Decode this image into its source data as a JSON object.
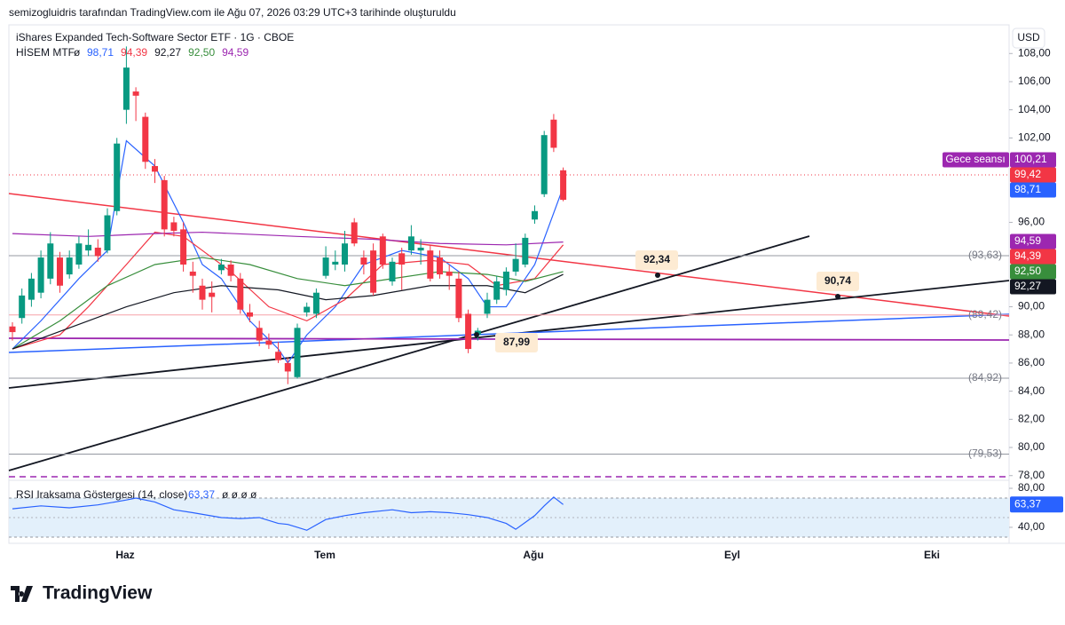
{
  "chart_data": {
    "type": "candlestick",
    "attribution": "semizogluidris tarafından TradingView.com ile Ağu 07, 2026 03:29 UTC+3 tarihinde oluşturuldu",
    "title": "iShares Expanded Tech-Software Sector ETF · 1G · CBOE",
    "currency": "USD",
    "indicator": {
      "name": "HİSEM MTF",
      "symbol": "ø",
      "values": [
        "98,71",
        "94,39",
        "92,27",
        "92,50",
        "94,59"
      ],
      "colors": [
        "#2962ff",
        "#f23645",
        "#131722",
        "#388e3c",
        "#9c27b0"
      ]
    },
    "categories": [
      "Haz",
      "Tem",
      "Ağu",
      "Eyl",
      "Eki"
    ],
    "up_color": "#089981",
    "down_color": "#f23645",
    "candles": {
      "open": [
        88.6,
        89.2,
        90.5,
        91.0,
        92.0,
        93.5,
        92.3,
        93.0,
        94.0,
        94.2,
        94.0,
        96.8,
        104.0,
        105.3,
        103.5,
        100.0,
        99.0,
        96.0,
        95.5,
        92.5,
        91.5,
        91.0,
        92.6,
        93.0,
        92.0,
        89.6,
        88.5,
        87.6,
        86.8,
        86.0,
        85.0,
        89.6,
        89.5,
        92.2,
        93.0,
        93.0,
        96.0,
        93.5,
        94.0,
        95.0,
        91.8,
        93.8,
        94.0,
        94.0,
        94.0,
        93.5,
        92.5,
        92.0,
        89.5,
        88.0,
        89.5,
        90.5,
        91.2,
        92.5,
        93.0,
        96.2,
        98.0,
        103.3,
        99.7
      ],
      "high": [
        88.9,
        91.3,
        92.4,
        94.0,
        95.3,
        93.9,
        94.0,
        95.0,
        95.5,
        94.8,
        97.0,
        102.0,
        108.5,
        105.6,
        103.8,
        100.5,
        99.3,
        96.4,
        96.0,
        93.2,
        92.0,
        91.8,
        93.4,
        93.3,
        92.4,
        90.2,
        89.0,
        88.1,
        87.5,
        86.4,
        88.8,
        90.3,
        91.3,
        94.3,
        94.0,
        95.4,
        96.3,
        94.0,
        94.5,
        95.2,
        93.5,
        94.2,
        95.8,
        94.8,
        94.4,
        94.0,
        93.0,
        92.5,
        89.8,
        88.5,
        91.0,
        92.2,
        92.8,
        94.5,
        95.2,
        97.2,
        102.5,
        103.7,
        99.9
      ],
      "low": [
        87.6,
        88.8,
        90.0,
        90.6,
        91.6,
        91.0,
        92.0,
        92.7,
        93.6,
        93.2,
        93.8,
        96.5,
        103.0,
        103.2,
        99.8,
        98.8,
        95.0,
        95.0,
        92.5,
        91.0,
        89.8,
        89.6,
        92.3,
        91.8,
        89.5,
        88.9,
        87.2,
        87.0,
        86.0,
        84.5,
        84.9,
        89.3,
        89.2,
        92.0,
        92.6,
        92.5,
        94.3,
        92.3,
        90.8,
        92.7,
        91.5,
        91.2,
        93.7,
        93.0,
        91.8,
        92.0,
        91.2,
        88.9,
        86.7,
        87.6,
        89.2,
        90.2,
        90.8,
        92.2,
        92.8,
        95.9,
        97.8,
        101.0,
        97.5
      ],
      "close": [
        88.2,
        90.8,
        92.0,
        93.5,
        94.5,
        91.5,
        93.5,
        94.5,
        94.4,
        93.6,
        96.5,
        101.6,
        107.0,
        105.0,
        100.3,
        99.6,
        95.5,
        95.4,
        93.0,
        92.2,
        90.5,
        90.7,
        93.0,
        92.2,
        89.8,
        89.3,
        87.6,
        87.3,
        86.2,
        85.4,
        88.5,
        90.0,
        91.0,
        93.5,
        93.2,
        94.5,
        94.5,
        93.0,
        91.0,
        93.0,
        93.2,
        93.0,
        95.0,
        94.2,
        92.0,
        92.3,
        92.2,
        89.2,
        87.0,
        88.3,
        90.5,
        91.8,
        92.5,
        93.4,
        94.9,
        96.8,
        102.2,
        101.3,
        97.6
      ]
    },
    "series": [
      {
        "color": "#2962ff",
        "x": [
          0,
          3,
          7,
          10,
          11,
          12,
          15,
          18,
          20,
          22,
          25,
          28,
          29,
          31,
          34,
          37,
          41,
          45,
          48,
          50,
          52,
          55,
          58
        ],
        "values": [
          87,
          89,
          92,
          94,
          98,
          101.8,
          100,
          96,
          93,
          92,
          89,
          87,
          86,
          88,
          90,
          93,
          94,
          93.5,
          92,
          90,
          90,
          93,
          98.5
        ]
      },
      {
        "color": "#f23645",
        "x": [
          0,
          5,
          8,
          12,
          15,
          18,
          23,
          27,
          31,
          35,
          39,
          44,
          48,
          51,
          55,
          58
        ],
        "values": [
          87,
          88,
          90,
          93,
          95.3,
          95,
          92.5,
          90,
          89,
          90.5,
          93,
          93.3,
          93,
          91.5,
          92,
          94.4
        ]
      },
      {
        "color": "#388e3c",
        "x": [
          0,
          5,
          10,
          15,
          20,
          25,
          30,
          35,
          40,
          45,
          50,
          54,
          58
        ],
        "values": [
          87,
          89,
          91.5,
          93,
          93.5,
          93,
          92,
          91.5,
          92,
          92.5,
          92.3,
          91.8,
          92.5
        ]
      },
      {
        "color": "#131722",
        "x": [
          0,
          6,
          12,
          17,
          22,
          28,
          33,
          38,
          44,
          50,
          54,
          58
        ],
        "values": [
          87,
          88.5,
          90,
          91,
          91.5,
          91.2,
          90.5,
          90.8,
          91.5,
          91.5,
          91,
          92.3
        ]
      },
      {
        "color": "#9c27b0",
        "x": [
          0,
          8,
          15,
          20,
          30,
          38,
          45,
          52,
          58
        ],
        "values": [
          95.2,
          95,
          95.2,
          95.3,
          95,
          94.8,
          94.5,
          94.4,
          94.6
        ]
      }
    ],
    "ylim": [
      77.73,
      109.91
    ],
    "yticks": [
      {
        "value": 108,
        "label": "108,00"
      },
      {
        "value": 106,
        "label": "106,00"
      },
      {
        "value": 104,
        "label": "104,00"
      },
      {
        "value": 102,
        "label": "102,00"
      },
      {
        "value": 96,
        "label": "96,00"
      },
      {
        "value": 90,
        "label": "90,00"
      },
      {
        "value": 88,
        "label": "88,00"
      },
      {
        "value": 86,
        "label": "86,00"
      },
      {
        "value": 84,
        "label": "84,00"
      },
      {
        "value": 82,
        "label": "82,00"
      },
      {
        "value": 80,
        "label": "80,00"
      },
      {
        "value": 78,
        "label": "78,00"
      }
    ],
    "levels": [
      {
        "value": 93.63,
        "label": "(93,63)"
      },
      {
        "value": 84.92,
        "label": "(84,92)"
      },
      {
        "value": 79.53,
        "label": "(79,53)"
      },
      {
        "value": 89.42,
        "label": "(89,42)"
      }
    ],
    "session_label": "Gece seansı",
    "price_badges": [
      {
        "value": 100.21,
        "label": "100,21"
      },
      {
        "value": 99.42,
        "label": "99,42"
      },
      {
        "value": 98.71,
        "label": "98,71"
      },
      {
        "value": 94.59,
        "label": "94,59"
      },
      {
        "value": 94.39,
        "label": "94,39"
      },
      {
        "value": 92.5,
        "label": "92,50"
      },
      {
        "value": 92.27,
        "label": "92,27"
      }
    ],
    "annotations": [
      {
        "value": 92.34,
        "label": "92,34"
      },
      {
        "value": 90.74,
        "label": "90,74"
      },
      {
        "value": 87.99,
        "label": "87,99"
      }
    ],
    "rsi": {
      "title": "RSI Iraksama Göstergesi (14, close)",
      "value": {
        "value": 63.37,
        "label": "63,37"
      },
      "symbols": "ø ø ø ø",
      "ylim": [
        23.6,
        87.3
      ],
      "yticks": [
        {
          "value": 80,
          "label": "80,00"
        },
        {
          "value": 40,
          "label": "40,00"
        }
      ],
      "x": [
        0,
        3,
        6,
        9,
        12,
        13,
        15,
        17,
        19,
        22,
        24,
        26,
        28,
        29,
        30,
        31,
        33,
        35,
        37,
        39,
        40,
        42,
        44,
        46,
        48,
        50,
        52,
        53,
        54,
        55,
        56,
        57,
        58
      ],
      "values": [
        59,
        62,
        60,
        63,
        68,
        70,
        66,
        58,
        55,
        50,
        49,
        50,
        44,
        43,
        40,
        37,
        48,
        52,
        55,
        57,
        58,
        55,
        56,
        55,
        53,
        50,
        44,
        38,
        45,
        52,
        62,
        71,
        63.37
      ]
    },
    "logo": "TradingView"
  }
}
